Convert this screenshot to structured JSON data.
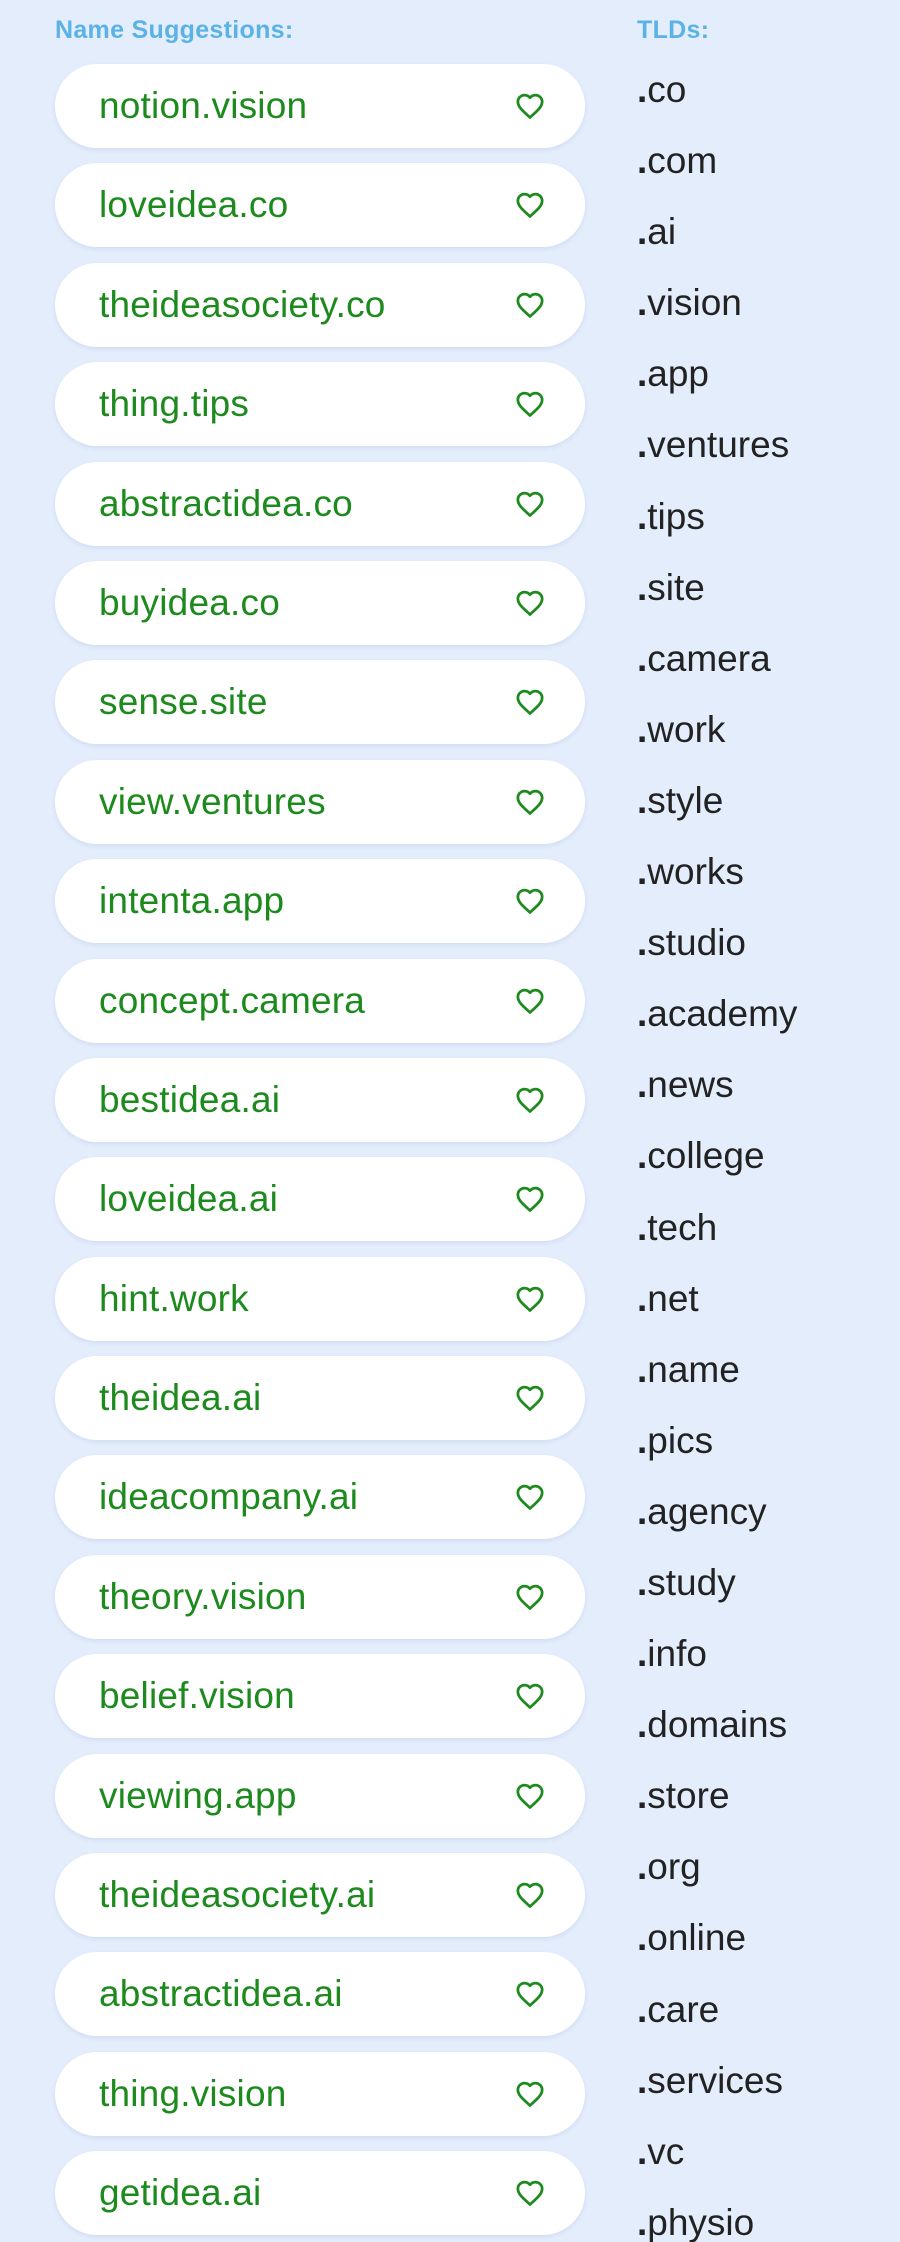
{
  "names_section": {
    "title": "Name Suggestions:",
    "heart_icon": "heart-outline-icon",
    "text_color": "#1d8a1d",
    "items": [
      "notion.vision",
      "loveidea.co",
      "theideasociety.co",
      "thing.tips",
      "abstractidea.co",
      "buyidea.co",
      "sense.site",
      "view.ventures",
      "intenta.app",
      "concept.camera",
      "bestidea.ai",
      "loveidea.ai",
      "hint.work",
      "theidea.ai",
      "ideacompany.ai",
      "theory.vision",
      "belief.vision",
      "viewing.app",
      "theideasociety.ai",
      "abstractidea.ai",
      "thing.vision",
      "getidea.ai"
    ]
  },
  "tlds_section": {
    "title": "TLDs:",
    "items": [
      "co",
      "com",
      "ai",
      "vision",
      "app",
      "ventures",
      "tips",
      "site",
      "camera",
      "work",
      "style",
      "works",
      "studio",
      "academy",
      "news",
      "college",
      "tech",
      "net",
      "name",
      "pics",
      "agency",
      "study",
      "info",
      "domains",
      "store",
      "org",
      "online",
      "care",
      "services",
      "vc",
      "physio"
    ]
  },
  "colors": {
    "background": "#e3edfc",
    "section_title": "#5ab2e6",
    "accent_green": "#1d8a1d"
  }
}
